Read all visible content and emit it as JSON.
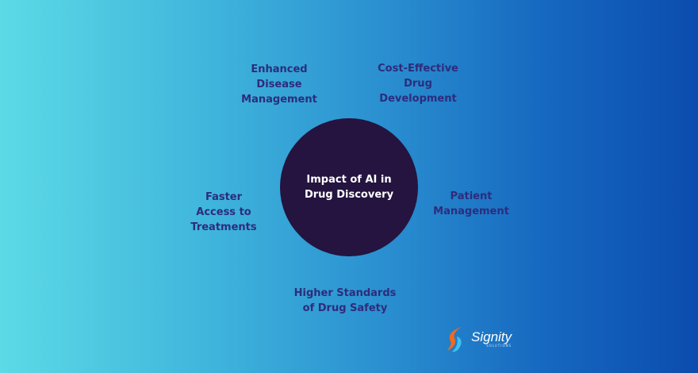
{
  "center": {
    "lines": [
      "Impact of AI in",
      "Drug Discovery"
    ]
  },
  "nodes": [
    {
      "lines": [
        "Enhanced",
        "Disease",
        "Management"
      ]
    },
    {
      "lines": [
        "Cost-Effective",
        "Drug",
        "Development"
      ]
    },
    {
      "lines": [
        "Faster",
        "Access to",
        "Treatments"
      ]
    },
    {
      "lines": [
        "Patient",
        "Management"
      ]
    },
    {
      "lines": [
        "Higher Standards",
        "of Drug Safety"
      ]
    }
  ],
  "logo": {
    "name": "Signity",
    "tagline": "SOLUTIONS"
  },
  "colors": {
    "text": "#2d2c7c",
    "circle": "#24143f",
    "gradient_left": "#5cdae6",
    "gradient_right": "#0b4cae"
  }
}
